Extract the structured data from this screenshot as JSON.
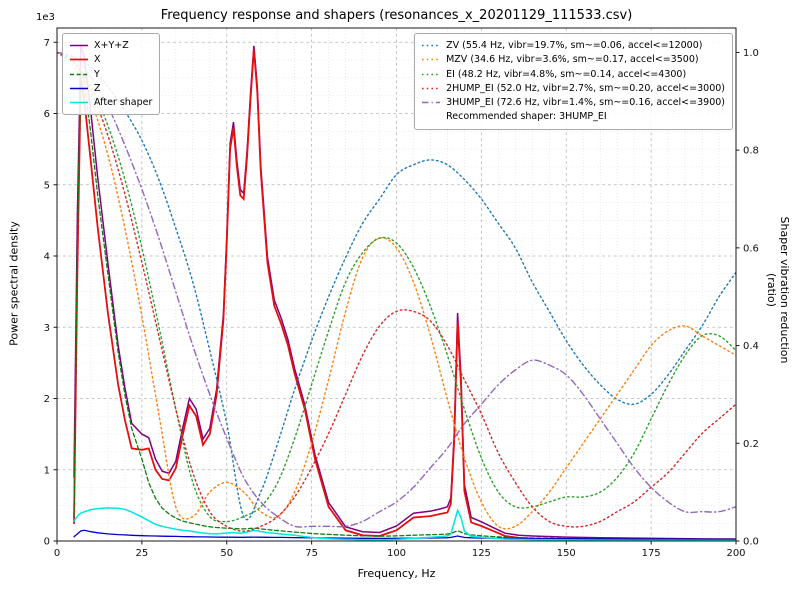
{
  "chart_data": {
    "type": "line",
    "title": "Frequency response and shapers (resonances_x_20201129_111533.csv)",
    "xlabel": "Frequency, Hz",
    "ylabel_left": "Power spectral density",
    "ylabel_right": "Shaper vibration reduction (ratio)",
    "y_left_offset_text": "1e3",
    "legend_note": "Recommended shaper: 3HUMP_EI",
    "grid": {
      "major": true,
      "minor": true,
      "major_color": "#b5b5b5",
      "minor_color": "#e2e2e2"
    },
    "x_axis": {
      "min": 0,
      "max": 200,
      "major_step": 25,
      "minor_step": 5,
      "major_ticks": [
        0,
        25,
        50,
        75,
        100,
        125,
        150,
        175,
        200
      ],
      "tick_labels": [
        "0",
        "25",
        "50",
        "75",
        "100",
        "125",
        "150",
        "175",
        "200"
      ]
    },
    "y_left": {
      "min": 0,
      "max": 7200,
      "major_step": 1000,
      "minor_step": 250,
      "major_ticks": [
        0,
        1000,
        2000,
        3000,
        4000,
        5000,
        6000,
        7000
      ],
      "tick_labels": [
        "0",
        "1",
        "2",
        "3",
        "4",
        "5",
        "6",
        "7"
      ]
    },
    "y_right": {
      "min": 0,
      "max": 1.05,
      "major_ticks": [
        0,
        0.2,
        0.4,
        0.6,
        0.8,
        1.0
      ],
      "tick_labels": [
        "0.0",
        "0.2",
        "0.4",
        "0.6",
        "0.8",
        "1.0"
      ]
    },
    "x_psd": [
      5,
      6,
      7,
      8,
      10,
      12,
      15,
      18,
      20,
      22,
      25,
      27,
      29,
      31,
      33,
      35,
      37,
      39,
      41,
      43,
      45,
      47,
      49,
      50,
      51,
      52,
      53,
      54,
      55,
      56,
      57,
      58,
      59,
      60,
      62,
      64,
      66,
      68,
      70,
      73,
      76,
      80,
      85,
      90,
      95,
      100,
      105,
      110,
      113,
      115,
      116,
      117,
      118,
      119,
      120,
      122,
      125,
      128,
      132,
      136,
      140,
      150,
      160,
      170,
      180,
      190,
      200
    ],
    "psd_series": [
      {
        "id": "xyz",
        "name": "X+Y+Z",
        "color": "#800080",
        "style": "solid",
        "width": 1.5,
        "axis": "left",
        "values": [
          900,
          4600,
          6950,
          6800,
          6000,
          5100,
          3900,
          2750,
          2150,
          1650,
          1500,
          1450,
          1150,
          980,
          950,
          1120,
          1580,
          2000,
          1850,
          1430,
          1580,
          2130,
          3180,
          4280,
          5580,
          5880,
          5330,
          4930,
          4880,
          5480,
          6280,
          6950,
          6380,
          5280,
          3980,
          3380,
          3130,
          2830,
          2420,
          1910,
          1210,
          540,
          200,
          130,
          120,
          210,
          390,
          420,
          450,
          480,
          600,
          1500,
          3200,
          2300,
          790,
          330,
          270,
          200,
          110,
          80,
          70,
          55,
          45,
          40,
          35,
          30,
          28
        ]
      },
      {
        "id": "x",
        "name": "X",
        "color": "#e31010",
        "style": "solid",
        "width": 1.8,
        "axis": "left",
        "values": [
          250,
          3800,
          6500,
          6200,
          5300,
          4400,
          3200,
          2200,
          1700,
          1300,
          1280,
          1300,
          1000,
          870,
          850,
          1020,
          1480,
          1900,
          1750,
          1350,
          1500,
          2050,
          3100,
          4200,
          5500,
          5800,
          5250,
          4850,
          4800,
          5400,
          6200,
          6900,
          6300,
          5200,
          3900,
          3300,
          3050,
          2750,
          2350,
          1850,
          1150,
          480,
          150,
          80,
          70,
          150,
          330,
          350,
          380,
          400,
          520,
          1400,
          3080,
          2200,
          700,
          260,
          210,
          150,
          70,
          45,
          35,
          25,
          18,
          15,
          12,
          10,
          10
        ]
      },
      {
        "id": "y",
        "name": "Y",
        "color": "#0f7d0f",
        "style": "dashed",
        "width": 1.3,
        "axis": "left",
        "values": [
          350,
          4200,
          6600,
          6450,
          5700,
          4850,
          3750,
          2650,
          2050,
          1580,
          1150,
          820,
          600,
          460,
          380,
          320,
          280,
          255,
          235,
          215,
          200,
          190,
          183,
          180,
          178,
          175,
          172,
          170,
          170,
          173,
          177,
          180,
          176,
          170,
          160,
          150,
          142,
          133,
          125,
          113,
          102,
          92,
          82,
          73,
          68,
          72,
          82,
          88,
          92,
          97,
          105,
          125,
          145,
          125,
          102,
          85,
          73,
          63,
          53,
          47,
          42,
          36,
          31,
          28,
          25,
          22,
          20
        ]
      },
      {
        "id": "z",
        "name": "Z",
        "color": "#0000cc",
        "style": "solid",
        "width": 1.3,
        "axis": "left",
        "values": [
          60,
          100,
          140,
          150,
          130,
          115,
          100,
          90,
          85,
          80,
          75,
          72,
          70,
          68,
          66,
          64,
          62,
          60,
          58,
          57,
          56,
          55,
          54,
          54,
          53,
          53,
          52,
          52,
          52,
          53,
          54,
          55,
          54,
          53,
          52,
          51,
          50,
          49,
          48,
          46,
          44,
          42,
          40,
          38,
          37,
          38,
          40,
          42,
          44,
          46,
          50,
          60,
          70,
          60,
          50,
          45,
          42,
          40,
          38,
          36,
          34,
          32,
          30,
          28,
          26,
          24,
          22
        ]
      },
      {
        "id": "after_shaper",
        "name": "After shaper",
        "color": "#00e5e5",
        "style": "solid",
        "width": 1.5,
        "axis": "left",
        "values": [
          280,
          350,
          390,
          410,
          440,
          455,
          465,
          460,
          445,
          405,
          335,
          285,
          235,
          205,
          185,
          165,
          152,
          142,
          125,
          112,
          102,
          100,
          108,
          112,
          116,
          118,
          114,
          110,
          114,
          124,
          138,
          148,
          143,
          133,
          118,
          108,
          98,
          90,
          80,
          62,
          46,
          32,
          22,
          17,
          16,
          22,
          36,
          52,
          62,
          72,
          95,
          260,
          430,
          330,
          140,
          62,
          52,
          42,
          27,
          22,
          20,
          16,
          13,
          11,
          10,
          9,
          9
        ]
      }
    ],
    "x_shapers": [
      0,
      5,
      10,
      15,
      20,
      25,
      30,
      35,
      40,
      45,
      50,
      55,
      60,
      65,
      70,
      75,
      80,
      85,
      90,
      95,
      100,
      105,
      110,
      115,
      120,
      125,
      130,
      135,
      140,
      145,
      150,
      155,
      160,
      165,
      170,
      175,
      180,
      185,
      190,
      195,
      200
    ],
    "shaper_series": [
      {
        "id": "zv",
        "name": "ZV (55.4 Hz, vibr=19.7%, sm~=0.06, accel<=12000)",
        "color": "#1f77b4",
        "style": "dotted",
        "width": 1.4,
        "axis": "right",
        "values": [
          1.0,
          0.99,
          0.97,
          0.93,
          0.88,
          0.82,
          0.74,
          0.64,
          0.53,
          0.39,
          0.24,
          0.05,
          0.1,
          0.2,
          0.31,
          0.41,
          0.5,
          0.58,
          0.65,
          0.7,
          0.75,
          0.77,
          0.78,
          0.77,
          0.74,
          0.7,
          0.65,
          0.6,
          0.53,
          0.47,
          0.41,
          0.36,
          0.32,
          0.29,
          0.28,
          0.3,
          0.34,
          0.39,
          0.44,
          0.5,
          0.55
        ]
      },
      {
        "id": "mzv",
        "name": "MZV (34.6 Hz, vibr=3.6%, sm~=0.17, accel<=3500)",
        "color": "#ff7f0e",
        "style": "dotted",
        "width": 1.4,
        "axis": "right",
        "values": [
          1.0,
          0.97,
          0.9,
          0.79,
          0.64,
          0.46,
          0.26,
          0.07,
          0.05,
          0.1,
          0.12,
          0.1,
          0.06,
          0.05,
          0.1,
          0.2,
          0.33,
          0.47,
          0.58,
          0.62,
          0.6,
          0.53,
          0.42,
          0.29,
          0.17,
          0.08,
          0.03,
          0.03,
          0.06,
          0.1,
          0.15,
          0.2,
          0.25,
          0.3,
          0.35,
          0.4,
          0.43,
          0.44,
          0.42,
          0.4,
          0.38
        ]
      },
      {
        "id": "ei",
        "name": "EI (48.2 Hz, vibr=4.8%, sm~=0.14, accel<=4300)",
        "color": "#2ca02c",
        "style": "dotted",
        "width": 1.4,
        "axis": "right",
        "values": [
          1.0,
          0.98,
          0.93,
          0.85,
          0.74,
          0.6,
          0.44,
          0.27,
          0.12,
          0.05,
          0.04,
          0.05,
          0.07,
          0.12,
          0.21,
          0.32,
          0.43,
          0.53,
          0.59,
          0.62,
          0.61,
          0.56,
          0.48,
          0.38,
          0.27,
          0.17,
          0.1,
          0.07,
          0.07,
          0.08,
          0.09,
          0.09,
          0.1,
          0.13,
          0.18,
          0.25,
          0.32,
          0.38,
          0.42,
          0.42,
          0.39
        ]
      },
      {
        "id": "2hump_ei",
        "name": "2HUMP_EI (52.0 Hz, vibr=2.7%, sm~=0.20, accel<=3000)",
        "color": "#d62728",
        "style": "dotted",
        "width": 1.4,
        "axis": "right",
        "values": [
          1.0,
          0.98,
          0.92,
          0.83,
          0.71,
          0.57,
          0.42,
          0.27,
          0.14,
          0.06,
          0.03,
          0.02,
          0.03,
          0.05,
          0.09,
          0.15,
          0.22,
          0.3,
          0.38,
          0.44,
          0.47,
          0.47,
          0.45,
          0.4,
          0.33,
          0.26,
          0.18,
          0.12,
          0.07,
          0.04,
          0.03,
          0.03,
          0.04,
          0.06,
          0.08,
          0.11,
          0.14,
          0.18,
          0.22,
          0.25,
          0.28
        ]
      },
      {
        "id": "3hump_ei",
        "name": "3HUMP_EI (72.6 Hz, vibr=1.4%, sm~=0.16, accel<=3900)",
        "color": "#9467bd",
        "style": "dashdot",
        "width": 1.4,
        "axis": "right",
        "values": [
          1.0,
          0.99,
          0.95,
          0.89,
          0.81,
          0.72,
          0.62,
          0.51,
          0.4,
          0.3,
          0.21,
          0.13,
          0.08,
          0.05,
          0.03,
          0.03,
          0.03,
          0.03,
          0.04,
          0.06,
          0.08,
          0.11,
          0.15,
          0.19,
          0.24,
          0.28,
          0.32,
          0.35,
          0.37,
          0.36,
          0.34,
          0.3,
          0.25,
          0.2,
          0.15,
          0.11,
          0.08,
          0.06,
          0.06,
          0.06,
          0.07
        ]
      }
    ]
  }
}
